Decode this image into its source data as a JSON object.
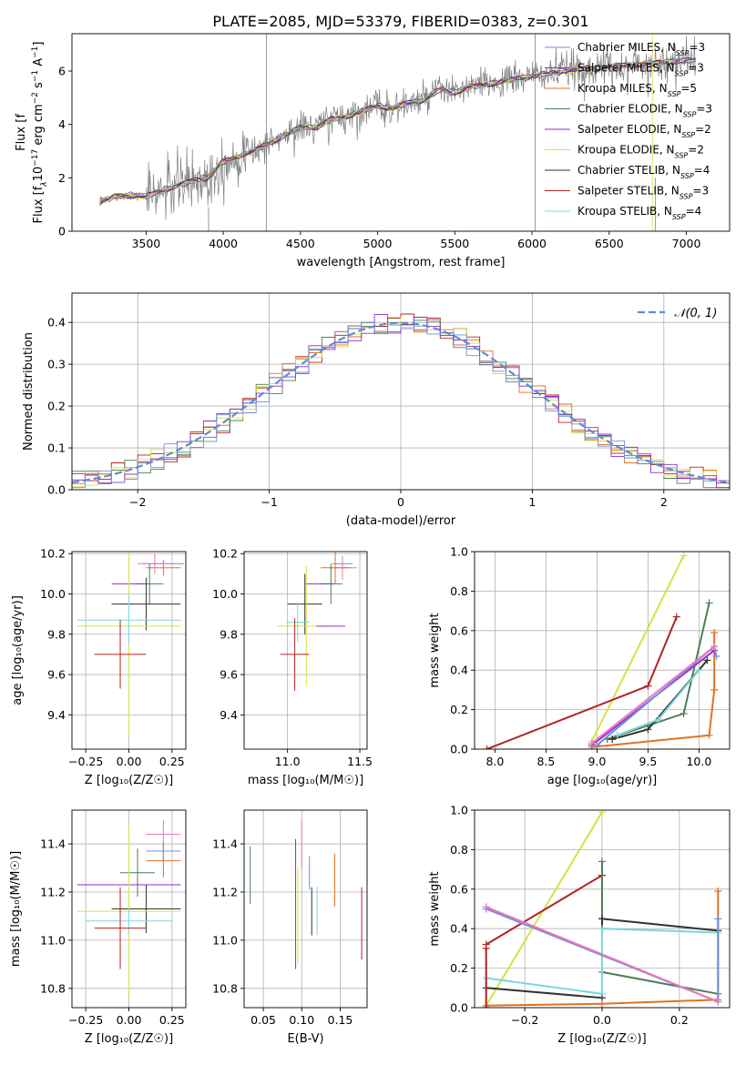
{
  "figure": {
    "title": "PLATE=2085, MJD=53379, FIBERID=0383, z=0.301"
  },
  "colors": {
    "chabrier_miles": "#6f8fdc",
    "salpeter_miles": "#9932cc",
    "kroupa_miles": "#e2721f",
    "chabrier_elodie": "#4f7f56",
    "salpeter_elodie": "#8b2fc9",
    "kroupa_elodie": "#d6e145",
    "chabrier_stelib": "#333333",
    "salpeter_stelib": "#b22222",
    "kroupa_stelib": "#7fd5d9",
    "data": "#808080",
    "pink": "#ee77bb",
    "normal": "#5b8dd6",
    "grid": "#b0b0b0"
  },
  "chart_data": [
    {
      "id": "spectrum",
      "type": "line",
      "xlabel": "wavelength [Angstrom, rest frame]",
      "ylabel": "Flux [f",
      "ylabel_parts": [
        "Flux [f",
        "λ",
        "10",
        "−17",
        " erg cm",
        "−2",
        " s",
        "−1",
        " A",
        "−1",
        "]"
      ],
      "xlim": [
        3020,
        7280
      ],
      "ylim": [
        0,
        7.4
      ],
      "xticks": [
        3500,
        4000,
        4500,
        5000,
        5500,
        6000,
        6500,
        7000
      ],
      "yticks": [
        0,
        2,
        4,
        6
      ],
      "legend_position": "upper right",
      "legend": [
        {
          "name": "Chabrier MILES",
          "nssp": "3",
          "color": "chabrier_miles"
        },
        {
          "name": "Salpeter MILES",
          "nssp": "3",
          "color": "salpeter_miles"
        },
        {
          "name": "Kroupa MILES",
          "nssp": "5",
          "color": "kroupa_miles"
        },
        {
          "name": "Chabrier ELODIE",
          "nssp": "3",
          "color": "chabrier_elodie"
        },
        {
          "name": "Salpeter ELODIE",
          "nssp": "2",
          "color": "salpeter_elodie"
        },
        {
          "name": "Kroupa ELODIE",
          "nssp": "2",
          "color": "kroupa_elodie"
        },
        {
          "name": "Chabrier STELIB",
          "nssp": "4",
          "color": "chabrier_stelib"
        },
        {
          "name": "Salpeter STELIB",
          "nssp": "3",
          "color": "salpeter_stelib"
        },
        {
          "name": "Kroupa STELIB",
          "nssp": "4",
          "color": "kroupa_stelib"
        }
      ],
      "continuum_anchors": [
        [
          3200,
          1.1
        ],
        [
          3300,
          1.3
        ],
        [
          3400,
          1.35
        ],
        [
          3500,
          1.3
        ],
        [
          3600,
          1.5
        ],
        [
          3700,
          1.7
        ],
        [
          3800,
          1.9
        ],
        [
          3900,
          2.0
        ],
        [
          4000,
          2.6
        ],
        [
          4100,
          2.8
        ],
        [
          4200,
          3.0
        ],
        [
          4300,
          3.3
        ],
        [
          4400,
          3.6
        ],
        [
          4500,
          3.9
        ],
        [
          4600,
          3.9
        ],
        [
          4700,
          4.2
        ],
        [
          4800,
          4.3
        ],
        [
          4900,
          4.5
        ],
        [
          5000,
          4.7
        ],
        [
          5100,
          4.6
        ],
        [
          5200,
          4.8
        ],
        [
          5300,
          4.9
        ],
        [
          5400,
          5.3
        ],
        [
          5500,
          5.2
        ],
        [
          5600,
          5.4
        ],
        [
          5700,
          5.5
        ],
        [
          5800,
          5.6
        ],
        [
          5900,
          5.7
        ],
        [
          6000,
          5.8
        ],
        [
          6200,
          6.0
        ],
        [
          6400,
          6.1
        ],
        [
          6600,
          6.2
        ],
        [
          6800,
          6.3
        ],
        [
          7000,
          6.4
        ],
        [
          7050,
          6.4
        ]
      ]
    },
    {
      "id": "residuals",
      "type": "bar",
      "xlabel": "(data-model)/error",
      "ylabel": "Normed distribution",
      "xlim": [
        -2.5,
        2.5
      ],
      "ylim": [
        0,
        0.47
      ],
      "xticks": [
        -2,
        -1,
        0,
        1,
        2
      ],
      "yticks": [
        0.0,
        0.1,
        0.2,
        0.3,
        0.4
      ],
      "bin_width": 0.1,
      "legend_position": "upper right",
      "legend_label": "𝒩(0, 1)",
      "series_colors": [
        "kroupa_miles",
        "salpeter_stelib",
        "chabrier_elodie",
        "kroupa_elodie",
        "salpeter_elodie",
        "chabrier_miles"
      ]
    },
    {
      "id": "age_vs_Z",
      "type": "scatter",
      "xlabel": "Z [log₁₀(Z/Z☉)]",
      "ylabel": "age [log₁₀(age/yr)]",
      "xlim": [
        -0.33,
        0.33
      ],
      "ylim": [
        9.23,
        10.21
      ],
      "xticks": [
        -0.25,
        0.0,
        0.25
      ],
      "xticklabels": [
        "−0.25",
        "0.00",
        "0.25"
      ],
      "yticks": [
        9.4,
        9.6,
        9.8,
        10.0,
        10.2
      ],
      "points": [
        {
          "x": 0.2,
          "xerr": 0.12,
          "y": 10.15,
          "yerr": 0.0,
          "color": "chabrier_miles"
        },
        {
          "x": 0.2,
          "xerr": 0.1,
          "y": 10.13,
          "yerr": 0.04,
          "color": "kroupa_miles"
        },
        {
          "x": 0.12,
          "xerr": 0.08,
          "y": 10.05,
          "yerr": 0.1,
          "color": "chabrier_elodie"
        },
        {
          "x": 0.0,
          "xerr": 0.1,
          "y": 10.05,
          "yerr": 0.0,
          "color": "salpeter_elodie"
        },
        {
          "x": 0.1,
          "xerr": 0.2,
          "y": 9.95,
          "yerr": 0.13,
          "color": "chabrier_stelib"
        },
        {
          "x": 0.0,
          "xerr": 0.3,
          "y": 9.84,
          "yerr": 0.55,
          "color": "kroupa_elodie"
        },
        {
          "x": 0.0,
          "xerr": 0.3,
          "y": 9.87,
          "yerr": 0.12,
          "color": "kroupa_stelib"
        },
        {
          "x": -0.05,
          "xerr": 0.15,
          "y": 9.7,
          "yerr": 0.17,
          "color": "salpeter_stelib"
        },
        {
          "x": 0.15,
          "xerr": 0.1,
          "y": 10.15,
          "yerr": 0.05,
          "color": "pink"
        }
      ]
    },
    {
      "id": "age_vs_mass",
      "type": "scatter",
      "xlabel": "mass [log₁₀(M/M☉)]",
      "ylabel": "",
      "xlim": [
        10.7,
        11.55
      ],
      "ylim": [
        9.23,
        10.21
      ],
      "xticks": [
        11.0,
        11.5
      ],
      "xticklabels": [
        "11.0",
        "11.5"
      ],
      "yticks": [
        9.4,
        9.6,
        9.8,
        10.0,
        10.2
      ],
      "points": [
        {
          "x": 11.38,
          "xerr": 0.07,
          "y": 10.15,
          "yerr": 0.03,
          "color": "chabrier_miles"
        },
        {
          "x": 11.38,
          "xerr": 0.1,
          "y": 10.13,
          "yerr": 0.06,
          "color": "pink"
        },
        {
          "x": 11.33,
          "xerr": 0.1,
          "y": 10.13,
          "yerr": 0.08,
          "color": "kroupa_miles"
        },
        {
          "x": 11.3,
          "xerr": 0.08,
          "y": 10.05,
          "yerr": 0.1,
          "color": "chabrier_elodie"
        },
        {
          "x": 11.22,
          "xerr": 0.1,
          "y": 10.05,
          "yerr": 0.0,
          "color": "salpeter_elodie"
        },
        {
          "x": 11.12,
          "xerr": 0.12,
          "y": 9.95,
          "yerr": 0.15,
          "color": "chabrier_stelib"
        },
        {
          "x": 11.13,
          "xerr": 0.2,
          "y": 9.84,
          "yerr": 0.3,
          "color": "kroupa_elodie"
        },
        {
          "x": 11.07,
          "xerr": 0.08,
          "y": 9.86,
          "yerr": 0.1,
          "color": "kroupa_stelib"
        },
        {
          "x": 11.3,
          "xerr": 0.1,
          "y": 9.84,
          "yerr": 0.0,
          "color": "salpeter_miles"
        },
        {
          "x": 11.05,
          "xerr": 0.1,
          "y": 9.7,
          "yerr": 0.18,
          "color": "salpeter_stelib"
        }
      ]
    },
    {
      "id": "weight_vs_age",
      "type": "line",
      "xlabel": "age [log₁₀(age/yr)]",
      "ylabel": "mass weight",
      "xlim": [
        7.8,
        10.3
      ],
      "ylim": [
        0,
        1.0
      ],
      "xticks": [
        8.0,
        8.5,
        9.0,
        9.5,
        10.0
      ],
      "xticklabels": [
        "8.0",
        "8.5",
        "9.0",
        "9.5",
        "10.0"
      ],
      "yticks": [
        0.0,
        0.2,
        0.4,
        0.6,
        0.8,
        1.0
      ],
      "series": [
        {
          "color": "kroupa_elodie",
          "x": [
            8.95,
            9.85
          ],
          "y": [
            0.04,
            0.98
          ]
        },
        {
          "color": "salpeter_stelib",
          "x": [
            7.92,
            9.5,
            9.78
          ],
          "y": [
            0.0,
            0.32,
            0.67
          ]
        },
        {
          "color": "chabrier_elodie",
          "x": [
            9.1,
            9.85,
            10.1
          ],
          "y": [
            0.05,
            0.18,
            0.74
          ]
        },
        {
          "color": "chabrier_stelib",
          "x": [
            9.15,
            9.5,
            10.08
          ],
          "y": [
            0.05,
            0.1,
            0.45
          ]
        },
        {
          "color": "kroupa_stelib",
          "x": [
            9.2,
            9.6,
            10.0
          ],
          "y": [
            0.07,
            0.15,
            0.4
          ]
        },
        {
          "color": "kroupa_miles",
          "x": [
            8.95,
            10.1,
            10.15,
            10.15
          ],
          "y": [
            0.01,
            0.07,
            0.3,
            0.59
          ]
        },
        {
          "color": "salpeter_miles",
          "x": [
            8.95,
            10.15
          ],
          "y": [
            0.02,
            0.5
          ]
        },
        {
          "color": "chabrier_miles",
          "x": [
            9.0,
            10.15,
            10.17
          ],
          "y": [
            0.02,
            0.52,
            0.47
          ]
        },
        {
          "color": "pink",
          "x": [
            8.95,
            10.15
          ],
          "y": [
            0.03,
            0.52
          ]
        }
      ]
    },
    {
      "id": "mass_vs_Z",
      "type": "scatter",
      "xlabel": "Z [log₁₀(Z/Z☉)]",
      "ylabel": "mass [log₁₀(M/M☉)]",
      "xlim": [
        -0.33,
        0.33
      ],
      "ylim": [
        10.72,
        11.54
      ],
      "xticks": [
        -0.25,
        0.0,
        0.25
      ],
      "xticklabels": [
        "−0.25",
        "0.00",
        "0.25"
      ],
      "yticks": [
        10.8,
        11.0,
        11.2,
        11.4
      ],
      "points": [
        {
          "x": 0.2,
          "xerr": 0.1,
          "y": 11.44,
          "yerr": 0.06,
          "color": "pink"
        },
        {
          "x": 0.2,
          "xerr": 0.1,
          "y": 11.37,
          "yerr": 0.04,
          "color": "chabrier_miles"
        },
        {
          "x": 0.2,
          "xerr": 0.1,
          "y": 11.33,
          "yerr": 0.07,
          "color": "kroupa_miles"
        },
        {
          "x": 0.05,
          "xerr": 0.1,
          "y": 11.28,
          "yerr": 0.1,
          "color": "chabrier_elodie"
        },
        {
          "x": 0.0,
          "xerr": 0.3,
          "y": 11.23,
          "yerr": 0.17,
          "color": "salpeter_elodie"
        },
        {
          "x": 0.1,
          "xerr": 0.2,
          "y": 11.13,
          "yerr": 0.1,
          "color": "chabrier_stelib"
        },
        {
          "x": 0.0,
          "xerr": 0.3,
          "y": 11.12,
          "yerr": 0.35,
          "color": "kroupa_elodie"
        },
        {
          "x": 0.0,
          "xerr": 0.25,
          "y": 11.08,
          "yerr": 0.05,
          "color": "kroupa_stelib"
        },
        {
          "x": -0.05,
          "xerr": 0.15,
          "y": 11.05,
          "yerr": 0.17,
          "color": "salpeter_stelib"
        }
      ]
    },
    {
      "id": "mass_vs_ebv",
      "type": "scatter",
      "xlabel": "E(B-V)",
      "ylabel": "",
      "xlim": [
        0.025,
        0.185
      ],
      "ylim": [
        10.72,
        11.54
      ],
      "xticks": [
        0.05,
        0.1,
        0.15
      ],
      "xticklabels": [
        "0.05",
        "0.10",
        "0.15"
      ],
      "yticks": [
        10.8,
        11.0,
        11.2,
        11.4
      ],
      "points": [
        {
          "x": 0.033,
          "xerr": 0.0,
          "y": 11.27,
          "yerr": 0.12,
          "color": "chabrier_elodie"
        },
        {
          "x": 0.092,
          "xerr": 0.0,
          "y": 11.15,
          "yerr": 0.27,
          "color": "salpeter_elodie"
        },
        {
          "x": 0.095,
          "xerr": 0.0,
          "y": 11.1,
          "yerr": 0.2,
          "color": "kroupa_elodie"
        },
        {
          "x": 0.1,
          "xerr": 0.0,
          "y": 11.4,
          "yerr": 0.1,
          "color": "pink"
        },
        {
          "x": 0.11,
          "xerr": 0.0,
          "y": 11.28,
          "yerr": 0.07,
          "color": "chabrier_miles"
        },
        {
          "x": 0.113,
          "xerr": 0.0,
          "y": 11.12,
          "yerr": 0.1,
          "color": "chabrier_stelib"
        },
        {
          "x": 0.12,
          "xerr": 0.0,
          "y": 11.12,
          "yerr": 0.1,
          "color": "kroupa_stelib"
        },
        {
          "x": 0.143,
          "xerr": 0.0,
          "y": 11.25,
          "yerr": 0.11,
          "color": "kroupa_miles"
        },
        {
          "x": 0.178,
          "xerr": 0.0,
          "y": 11.07,
          "yerr": 0.15,
          "color": "salpeter_stelib"
        }
      ]
    },
    {
      "id": "weight_vs_Z",
      "type": "line",
      "xlabel": "Z [log₁₀(Z/Z☉)]",
      "ylabel": "mass weight",
      "xlim": [
        -0.33,
        0.33
      ],
      "ylim": [
        0,
        1.0
      ],
      "xticks": [
        -0.2,
        0.0,
        0.2
      ],
      "xticklabels": [
        "−0.2",
        "0.0",
        "0.2"
      ],
      "yticks": [
        0.0,
        0.2,
        0.4,
        0.6,
        0.8,
        1.0
      ],
      "series": [
        {
          "color": "kroupa_elodie",
          "x": [
            -0.3,
            0.0
          ],
          "y": [
            0.01,
            0.99
          ]
        },
        {
          "color": "salpeter_stelib",
          "x": [
            -0.3,
            0.0,
            0.0
          ],
          "y": [
            0.32,
            0.67,
            0.45
          ]
        },
        {
          "color": "chabrier_elodie",
          "x": [
            0.0,
            0.0,
            0.3
          ],
          "y": [
            0.74,
            0.18,
            0.07
          ]
        },
        {
          "color": "chabrier_stelib",
          "x": [
            -0.3,
            0.0,
            0.0,
            0.3
          ],
          "y": [
            0.1,
            0.05,
            0.45,
            0.39
          ]
        },
        {
          "color": "kroupa_stelib",
          "x": [
            -0.3,
            0.0,
            0.0,
            0.3
          ],
          "y": [
            0.15,
            0.07,
            0.4,
            0.38
          ]
        },
        {
          "color": "kroupa_miles",
          "x": [
            -0.3,
            0.0,
            0.3,
            0.3
          ],
          "y": [
            0.01,
            0.02,
            0.04,
            0.59
          ]
        },
        {
          "color": "chabrier_miles",
          "x": [
            -0.3,
            0.3,
            0.3
          ],
          "y": [
            0.5,
            0.03,
            0.45
          ]
        },
        {
          "color": "pink",
          "x": [
            -0.3,
            0.3
          ],
          "y": [
            0.51,
            0.03
          ]
        },
        {
          "color": "salpeter_stelib",
          "x": [
            -0.3,
            -0.3
          ],
          "y": [
            0.0,
            0.3
          ]
        }
      ]
    }
  ]
}
